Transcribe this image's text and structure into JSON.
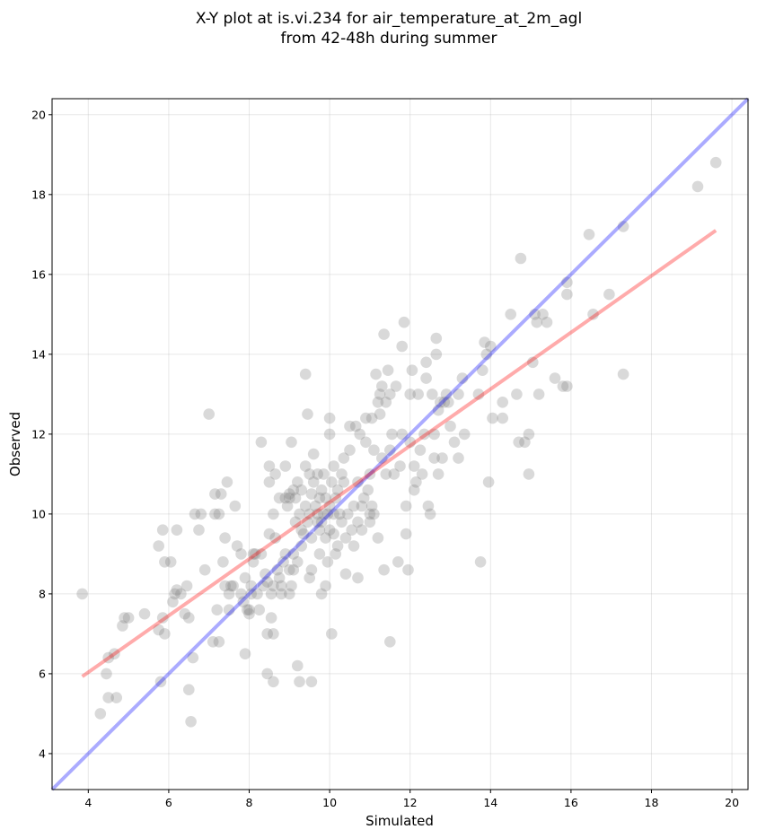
{
  "chart_data": {
    "type": "scatter",
    "title_lines": [
      "X-Y plot at is.vi.234 for air_temperature_at_2m_agl",
      "from 42-48h during summer"
    ],
    "xlabel": "Simulated",
    "ylabel": "Observed",
    "xlim": [
      3.1,
      20.4
    ],
    "ylim": [
      3.1,
      20.4
    ],
    "xticks": [
      4,
      6,
      8,
      10,
      12,
      14,
      16,
      18,
      20
    ],
    "yticks": [
      4,
      6,
      8,
      10,
      12,
      14,
      16,
      18,
      20
    ],
    "grid": true,
    "colors": {
      "points": "#808080",
      "identity_line": "#0000ff",
      "regression_line": "#ff0000"
    },
    "lines": [
      {
        "kind": "identity",
        "x": [
          3.1,
          20.4
        ],
        "y": [
          3.1,
          20.4
        ]
      },
      {
        "kind": "regression",
        "x": [
          3.85,
          19.6
        ],
        "y": [
          5.93,
          17.1
        ]
      }
    ],
    "points": [
      [
        3.85,
        8.0
      ],
      [
        4.3,
        5.0
      ],
      [
        4.45,
        6.0
      ],
      [
        4.5,
        5.4
      ],
      [
        4.5,
        6.4
      ],
      [
        4.65,
        6.5
      ],
      [
        4.7,
        5.4
      ],
      [
        4.85,
        7.2
      ],
      [
        4.9,
        7.4
      ],
      [
        5.0,
        7.4
      ],
      [
        5.4,
        7.5
      ],
      [
        5.75,
        9.2
      ],
      [
        5.75,
        7.1
      ],
      [
        5.8,
        5.8
      ],
      [
        5.85,
        7.4
      ],
      [
        5.85,
        9.6
      ],
      [
        5.9,
        7.0
      ],
      [
        5.9,
        8.8
      ],
      [
        6.05,
        8.8
      ],
      [
        6.1,
        7.8
      ],
      [
        6.15,
        8.0
      ],
      [
        6.2,
        8.1
      ],
      [
        6.2,
        9.6
      ],
      [
        6.3,
        8.0
      ],
      [
        6.4,
        7.5
      ],
      [
        6.45,
        8.2
      ],
      [
        6.5,
        7.4
      ],
      [
        6.5,
        5.6
      ],
      [
        6.55,
        4.8
      ],
      [
        6.6,
        6.4
      ],
      [
        6.65,
        10.0
      ],
      [
        6.75,
        9.6
      ],
      [
        6.8,
        10.0
      ],
      [
        6.9,
        8.6
      ],
      [
        7.0,
        12.5
      ],
      [
        7.1,
        6.8
      ],
      [
        7.15,
        10.5
      ],
      [
        7.15,
        10.0
      ],
      [
        7.2,
        7.6
      ],
      [
        7.25,
        6.8
      ],
      [
        7.25,
        10.0
      ],
      [
        7.3,
        10.5
      ],
      [
        7.35,
        8.8
      ],
      [
        7.4,
        8.2
      ],
      [
        7.4,
        9.4
      ],
      [
        7.45,
        10.8
      ],
      [
        7.5,
        7.6
      ],
      [
        7.5,
        8.0
      ],
      [
        7.55,
        8.2
      ],
      [
        7.6,
        8.2
      ],
      [
        7.65,
        10.2
      ],
      [
        7.7,
        9.2
      ],
      [
        7.8,
        8.0
      ],
      [
        7.8,
        9.0
      ],
      [
        7.85,
        7.8
      ],
      [
        7.9,
        6.5
      ],
      [
        7.9,
        8.4
      ],
      [
        7.95,
        7.6
      ],
      [
        8.0,
        7.5
      ],
      [
        8.0,
        7.6
      ],
      [
        8.05,
        8.0
      ],
      [
        8.05,
        8.2
      ],
      [
        8.1,
        8.8
      ],
      [
        8.1,
        9.0
      ],
      [
        8.15,
        9.0
      ],
      [
        8.2,
        8.0
      ],
      [
        8.25,
        7.6
      ],
      [
        8.3,
        9.0
      ],
      [
        8.3,
        11.8
      ],
      [
        8.35,
        8.2
      ],
      [
        8.4,
        8.5
      ],
      [
        8.45,
        6.0
      ],
      [
        8.45,
        7.0
      ],
      [
        8.45,
        8.3
      ],
      [
        8.5,
        9.5
      ],
      [
        8.5,
        10.8
      ],
      [
        8.5,
        11.2
      ],
      [
        8.55,
        7.4
      ],
      [
        8.55,
        8.0
      ],
      [
        8.6,
        5.8
      ],
      [
        8.6,
        7.0
      ],
      [
        8.6,
        8.2
      ],
      [
        8.6,
        10.0
      ],
      [
        8.65,
        9.4
      ],
      [
        8.65,
        11.0
      ],
      [
        8.7,
        8.6
      ],
      [
        8.75,
        8.4
      ],
      [
        8.75,
        10.4
      ],
      [
        8.8,
        8.2
      ],
      [
        8.8,
        8.0
      ],
      [
        8.85,
        8.8
      ],
      [
        8.9,
        9.0
      ],
      [
        8.9,
        10.4
      ],
      [
        8.9,
        11.2
      ],
      [
        8.95,
        10.2
      ],
      [
        9.0,
        8.0
      ],
      [
        9.0,
        8.6
      ],
      [
        9.0,
        10.5
      ],
      [
        9.0,
        10.4
      ],
      [
        9.05,
        11.8
      ],
      [
        9.05,
        8.2
      ],
      [
        9.1,
        8.6
      ],
      [
        9.1,
        10.6
      ],
      [
        9.1,
        9.0
      ],
      [
        9.15,
        9.8
      ],
      [
        9.15,
        10.4
      ],
      [
        9.2,
        8.8
      ],
      [
        9.2,
        10.8
      ],
      [
        9.2,
        6.2
      ],
      [
        9.25,
        5.8
      ],
      [
        9.25,
        10.0
      ],
      [
        9.3,
        9.6
      ],
      [
        9.3,
        10.6
      ],
      [
        9.3,
        9.2
      ],
      [
        9.35,
        9.5
      ],
      [
        9.4,
        10.2
      ],
      [
        9.4,
        11.2
      ],
      [
        9.4,
        13.5
      ],
      [
        9.45,
        12.5
      ],
      [
        9.45,
        9.8
      ],
      [
        9.5,
        10.0
      ],
      [
        9.5,
        8.4
      ],
      [
        9.5,
        11.0
      ],
      [
        9.55,
        8.6
      ],
      [
        9.55,
        5.8
      ],
      [
        9.55,
        10.5
      ],
      [
        9.55,
        9.4
      ],
      [
        9.6,
        10.8
      ],
      [
        9.6,
        11.5
      ],
      [
        9.65,
        10.2
      ],
      [
        9.7,
        9.8
      ],
      [
        9.7,
        10.0
      ],
      [
        9.7,
        11.0
      ],
      [
        9.75,
        9.0
      ],
      [
        9.75,
        10.4
      ],
      [
        9.75,
        9.6
      ],
      [
        9.8,
        8.0
      ],
      [
        9.8,
        9.8
      ],
      [
        9.8,
        10.6
      ],
      [
        9.85,
        10.0
      ],
      [
        9.85,
        11.0
      ],
      [
        9.9,
        8.2
      ],
      [
        9.9,
        10.4
      ],
      [
        9.9,
        9.4
      ],
      [
        9.95,
        10.0
      ],
      [
        9.95,
        8.8
      ],
      [
        10.0,
        9.6
      ],
      [
        10.0,
        10.2
      ],
      [
        10.0,
        12.0
      ],
      [
        10.0,
        12.4
      ],
      [
        10.05,
        10.8
      ],
      [
        10.05,
        7.0
      ],
      [
        10.1,
        10.0
      ],
      [
        10.1,
        11.2
      ],
      [
        10.1,
        9.5
      ],
      [
        10.15,
        10.4
      ],
      [
        10.15,
        9.0
      ],
      [
        10.2,
        10.6
      ],
      [
        10.2,
        9.2
      ],
      [
        10.25,
        10.0
      ],
      [
        10.3,
        11.0
      ],
      [
        10.3,
        9.8
      ],
      [
        10.35,
        11.4
      ],
      [
        10.35,
        10.8
      ],
      [
        10.4,
        8.5
      ],
      [
        10.4,
        9.4
      ],
      [
        10.45,
        10.0
      ],
      [
        10.5,
        11.6
      ],
      [
        10.5,
        12.2
      ],
      [
        10.55,
        9.6
      ],
      [
        10.6,
        10.2
      ],
      [
        10.6,
        9.2
      ],
      [
        10.65,
        12.2
      ],
      [
        10.7,
        9.8
      ],
      [
        10.7,
        10.8
      ],
      [
        10.7,
        8.4
      ],
      [
        10.75,
        12.0
      ],
      [
        10.8,
        9.6
      ],
      [
        10.8,
        10.2
      ],
      [
        10.85,
        10.4
      ],
      [
        10.9,
        11.8
      ],
      [
        10.9,
        12.4
      ],
      [
        10.95,
        10.6
      ],
      [
        11.0,
        10.0
      ],
      [
        11.0,
        11.0
      ],
      [
        11.0,
        9.8
      ],
      [
        11.05,
        10.2
      ],
      [
        11.05,
        12.4
      ],
      [
        11.1,
        10.0
      ],
      [
        11.1,
        11.6
      ],
      [
        11.15,
        13.5
      ],
      [
        11.2,
        9.4
      ],
      [
        11.2,
        12.8
      ],
      [
        11.25,
        13.0
      ],
      [
        11.25,
        12.5
      ],
      [
        11.3,
        11.4
      ],
      [
        11.3,
        13.2
      ],
      [
        11.35,
        8.6
      ],
      [
        11.35,
        14.5
      ],
      [
        11.4,
        11.0
      ],
      [
        11.4,
        12.8
      ],
      [
        11.45,
        13.6
      ],
      [
        11.5,
        6.8
      ],
      [
        11.5,
        11.6
      ],
      [
        11.5,
        13.0
      ],
      [
        11.55,
        12.0
      ],
      [
        11.6,
        11.0
      ],
      [
        11.65,
        13.2
      ],
      [
        11.7,
        8.8
      ],
      [
        11.75,
        11.2
      ],
      [
        11.8,
        12.0
      ],
      [
        11.8,
        14.2
      ],
      [
        11.85,
        14.8
      ],
      [
        11.9,
        10.2
      ],
      [
        11.9,
        9.5
      ],
      [
        11.95,
        8.6
      ],
      [
        12.0,
        11.8
      ],
      [
        12.0,
        13.0
      ],
      [
        12.05,
        13.6
      ],
      [
        12.1,
        10.6
      ],
      [
        12.1,
        11.2
      ],
      [
        12.15,
        10.8
      ],
      [
        12.2,
        13.0
      ],
      [
        12.25,
        11.6
      ],
      [
        12.3,
        11.0
      ],
      [
        12.35,
        12.0
      ],
      [
        12.4,
        13.4
      ],
      [
        12.4,
        13.8
      ],
      [
        12.45,
        10.2
      ],
      [
        12.5,
        10.0
      ],
      [
        12.55,
        13.0
      ],
      [
        12.6,
        12.0
      ],
      [
        12.6,
        11.4
      ],
      [
        12.65,
        14.0
      ],
      [
        12.65,
        14.4
      ],
      [
        12.7,
        12.6
      ],
      [
        12.7,
        11.0
      ],
      [
        12.75,
        12.8
      ],
      [
        12.8,
        11.4
      ],
      [
        12.85,
        12.8
      ],
      [
        12.9,
        13.0
      ],
      [
        12.95,
        12.8
      ],
      [
        13.0,
        12.2
      ],
      [
        13.1,
        11.8
      ],
      [
        13.2,
        11.4
      ],
      [
        13.2,
        13.0
      ],
      [
        13.3,
        13.4
      ],
      [
        13.35,
        12.0
      ],
      [
        13.7,
        13.0
      ],
      [
        13.75,
        8.8
      ],
      [
        13.8,
        13.6
      ],
      [
        13.85,
        14.3
      ],
      [
        13.9,
        14.0
      ],
      [
        13.95,
        10.8
      ],
      [
        14.0,
        14.2
      ],
      [
        14.05,
        12.4
      ],
      [
        14.3,
        12.8
      ],
      [
        14.3,
        12.4
      ],
      [
        14.5,
        15.0
      ],
      [
        14.65,
        13.0
      ],
      [
        14.7,
        11.8
      ],
      [
        14.75,
        16.4
      ],
      [
        14.85,
        11.8
      ],
      [
        14.95,
        11.0
      ],
      [
        14.95,
        12.0
      ],
      [
        15.05,
        13.8
      ],
      [
        15.1,
        15.0
      ],
      [
        15.15,
        14.8
      ],
      [
        15.2,
        13.0
      ],
      [
        15.3,
        15.0
      ],
      [
        15.4,
        14.8
      ],
      [
        15.6,
        13.4
      ],
      [
        15.8,
        13.2
      ],
      [
        15.9,
        15.8
      ],
      [
        15.9,
        15.5
      ],
      [
        15.9,
        13.2
      ],
      [
        16.45,
        17.0
      ],
      [
        16.55,
        15.0
      ],
      [
        16.95,
        15.5
      ],
      [
        17.3,
        17.2
      ],
      [
        17.3,
        13.5
      ],
      [
        19.15,
        18.2
      ],
      [
        19.6,
        18.8
      ]
    ]
  }
}
